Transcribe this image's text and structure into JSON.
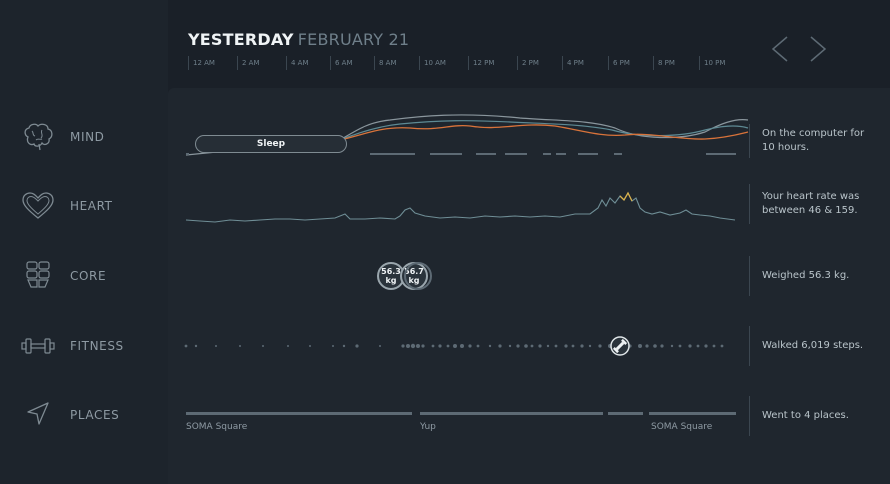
{
  "header": {
    "day": "YESTERDAY",
    "date": "FEBRUARY 21"
  },
  "timeline": {
    "ticks": [
      "12 AM",
      "2 AM",
      "4 AM",
      "6 AM",
      "8 AM",
      "10 AM",
      "12 PM",
      "2 PM",
      "4 PM",
      "6 PM",
      "8 PM",
      "10 PM"
    ]
  },
  "nav": {
    "prev_icon": "chevron-left-icon",
    "next_icon": "chevron-right-icon"
  },
  "rows": {
    "mind": {
      "label": "MIND",
      "icon": "brain-icon",
      "summary": "On the computer for 10 hours.",
      "activity": "Sleep"
    },
    "heart": {
      "label": "HEART",
      "icon": "heart-icon",
      "summary": "Your heart rate was between 46 & 159."
    },
    "core": {
      "label": "CORE",
      "icon": "abs-icon",
      "summary": "Weighed 56.3 kg.",
      "measurements": [
        {
          "value": "56.3",
          "unit": "kg"
        },
        {
          "value": "56.7",
          "unit": "kg"
        }
      ]
    },
    "fitness": {
      "label": "FITNESS",
      "icon": "dumbbell-icon",
      "summary": "Walked 6,019 steps."
    },
    "places": {
      "label": "PLACES",
      "icon": "location-arrow-icon",
      "summary": "Went to 4 places.",
      "places": [
        "SOMA Square",
        "Yup",
        "SOMA Square"
      ]
    }
  },
  "colors": {
    "accent_orange": "#d9733a",
    "line_gray": "#8a969d",
    "background": "#1a2028"
  }
}
